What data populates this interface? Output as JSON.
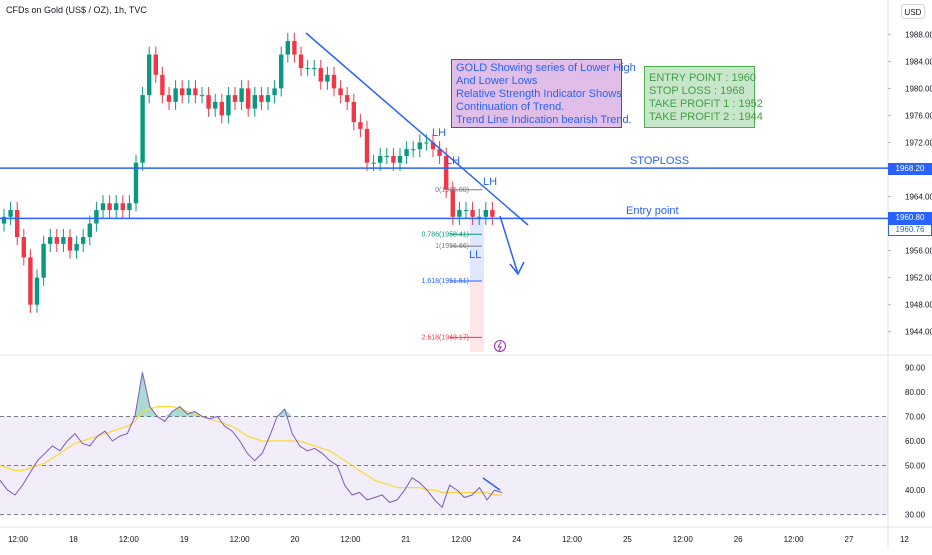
{
  "header": {
    "symbol": "CFDs on Gold (US$ / OZ), 1h, TVC",
    "currency": "USD"
  },
  "notes": {
    "analysis": [
      "GOLD Showing series of Lower High",
      "And Lower Lows",
      "Relative Strength Indicator Shows",
      "Continuation of Trend.",
      "Trend Line Indication bearish Trend."
    ],
    "levels": [
      "ENTRY POINT : 1960",
      "STOP LOSS : 1968",
      "TAKE PROFIT 1 : 1952",
      "TAKE PROFIT 2 : 1944"
    ]
  },
  "annotations": {
    "stoploss": "STOPLOSS",
    "entry": "Entry point",
    "lh": "LH",
    "ll": "LL"
  },
  "price_labels": {
    "stoploss": "1968.20",
    "current": "1960.80",
    "entry": "1960.76"
  },
  "fib_labels": [
    "0(1965.00)",
    "0.786(1958.41)",
    "1(1956.66)",
    "1.618(1951.51)",
    "2.618(1943.17)"
  ],
  "chart_data": {
    "type": "candlestick",
    "title": "CFDs on Gold (US$ / OZ), 1h, TVC",
    "price_axis": {
      "min": 1941,
      "max": 1991,
      "ticks": [
        1944.0,
        1948.0,
        1952.0,
        1956.0,
        1960.0,
        1964.0,
        1968.0,
        1972.0,
        1976.0,
        1980.0,
        1984.0,
        1988.0
      ]
    },
    "time_axis": {
      "ticks": [
        "12:00",
        "18",
        "12:00",
        "19",
        "12:00",
        "20",
        "12:00",
        "21",
        "12:00",
        "24",
        "12:00",
        "25",
        "12:00",
        "26",
        "12:00",
        "27",
        "12"
      ]
    },
    "candles": [
      1961,
      1962,
      1958,
      1955,
      1948,
      1952,
      1957,
      1958,
      1957,
      1958,
      1956,
      1957,
      1958,
      1960,
      1962,
      1963,
      1962,
      1963,
      1962,
      1963,
      1969,
      1979,
      1985,
      1982,
      1979,
      1978,
      1980,
      1979,
      1980,
      1979,
      1979,
      1977,
      1978,
      1976,
      1979,
      1978,
      1980,
      1977,
      1979,
      1978,
      1979,
      1980,
      1985,
      1987,
      1985,
      1983,
      1983,
      1983,
      1981,
      1982,
      1980,
      1979,
      1978,
      1975,
      1974,
      1969,
      1969,
      1970,
      1970,
      1969,
      1970,
      1971,
      1971,
      1972,
      1972,
      1971,
      1970,
      1965,
      1961,
      1962,
      1962,
      1961,
      1961,
      1962,
      1961
    ],
    "horizontal_levels": [
      {
        "name": "STOPLOSS",
        "price": 1968.2
      },
      {
        "name": "Entry point",
        "price": 1960.76
      }
    ],
    "fib_levels": [
      {
        "ratio": 0,
        "price": 1965.0
      },
      {
        "ratio": 0.786,
        "price": 1958.41
      },
      {
        "ratio": 1,
        "price": 1956.66
      },
      {
        "ratio": 1.618,
        "price": 1951.51
      },
      {
        "ratio": 2.618,
        "price": 1943.17
      }
    ],
    "rsi": {
      "axis_ticks": [
        30.0,
        40.0,
        50.0,
        60.0,
        70.0,
        80.0,
        90.0
      ],
      "range": [
        27,
        93
      ],
      "band": [
        30,
        70
      ],
      "middle": 50,
      "values": [
        44,
        40,
        38,
        42,
        47,
        52,
        55,
        58,
        56,
        60,
        63,
        59,
        58,
        62,
        64,
        60,
        62,
        63,
        70,
        88,
        74,
        70,
        68,
        72,
        74,
        71,
        72,
        70,
        69,
        70,
        66,
        64,
        60,
        55,
        52,
        55,
        62,
        70,
        73,
        63,
        58,
        56,
        57,
        55,
        52,
        50,
        42,
        38,
        39,
        36,
        37,
        38,
        35,
        36,
        40,
        45,
        43,
        40,
        36,
        33,
        42,
        40,
        37,
        38,
        41,
        36,
        40,
        39
      ],
      "ma": [
        50,
        49,
        48,
        48,
        49,
        50,
        51,
        53,
        55,
        57,
        59,
        60,
        61,
        62,
        63,
        64,
        65,
        66,
        68,
        72,
        73,
        74,
        74,
        74,
        73,
        72,
        71,
        70,
        69,
        68,
        67,
        66,
        64,
        62,
        61,
        60,
        60,
        60,
        60,
        60,
        60,
        59,
        58,
        57,
        56,
        54,
        52,
        50,
        48,
        46,
        44,
        43,
        42,
        41,
        41,
        41,
        41,
        40,
        40,
        39,
        39,
        39,
        39,
        39,
        39,
        39,
        38,
        38
      ]
    }
  }
}
